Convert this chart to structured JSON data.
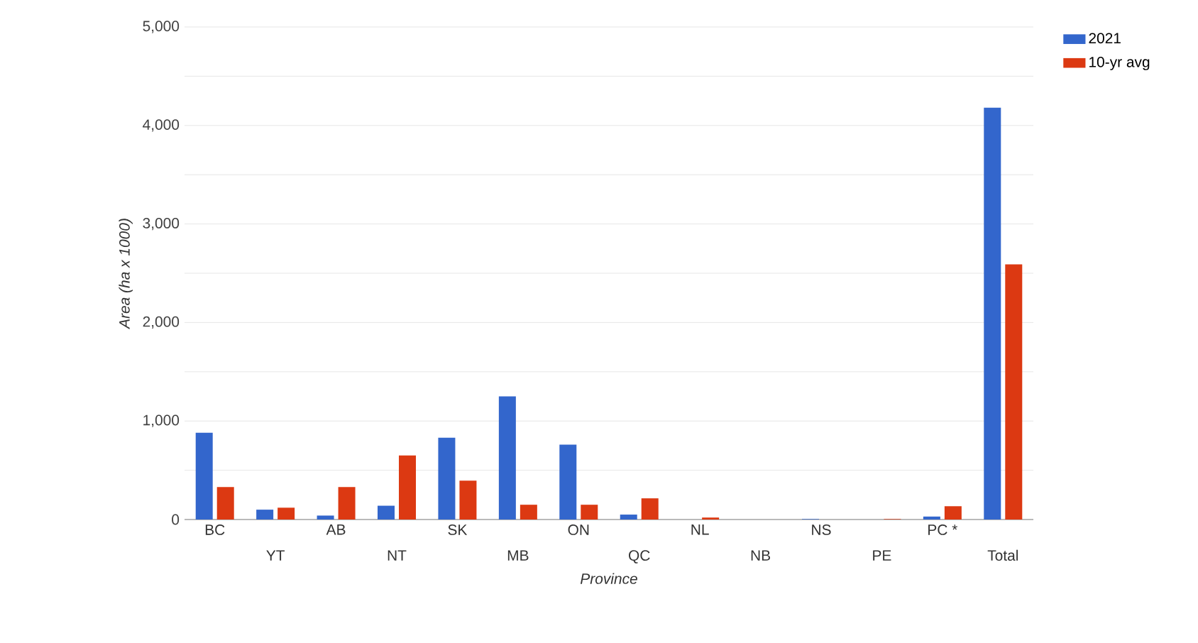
{
  "chart_data": {
    "type": "bar",
    "xlabel": "Province",
    "ylabel": "Area (ha x 1000)",
    "categories": [
      "BC",
      "YT",
      "AB",
      "NT",
      "SK",
      "MB",
      "ON",
      "QC",
      "NL",
      "NB",
      "NS",
      "PE",
      "PC *",
      "Total"
    ],
    "series": [
      {
        "name": "2021",
        "color": "#3366cc",
        "values": [
          880,
          100,
          40,
          140,
          830,
          1250,
          760,
          50,
          0,
          0,
          5,
          0,
          30,
          4180
        ]
      },
      {
        "name": "10-yr avg",
        "color": "#dc3912",
        "values": [
          330,
          120,
          330,
          650,
          395,
          150,
          150,
          215,
          20,
          0,
          0,
          5,
          135,
          2590
        ]
      }
    ],
    "ylim": [
      0,
      5000
    ],
    "yticks": [
      0,
      {
        "value": 500,
        "label": null
      },
      {
        "value": 1000,
        "label": "1,000"
      },
      {
        "value": 1500,
        "label": null
      },
      {
        "value": 2000,
        "label": "2,000"
      },
      {
        "value": 2500,
        "label": null
      },
      {
        "value": 3000,
        "label": "3,000"
      },
      {
        "value": 3500,
        "label": null
      },
      {
        "value": 4000,
        "label": "4,000"
      },
      {
        "value": 4500,
        "label": null
      },
      {
        "value": 5000,
        "label": "5,000"
      }
    ],
    "grid": "y",
    "legend": "top right"
  }
}
